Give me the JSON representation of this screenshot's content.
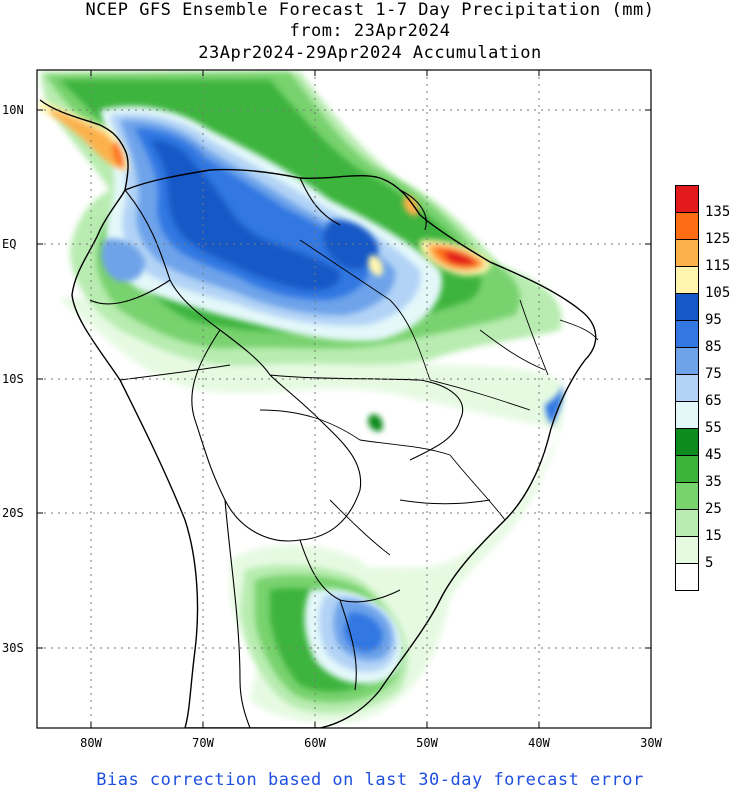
{
  "title": {
    "line1": "NCEP GFS Ensemble Forecast 1-7 Day Precipitation (mm)",
    "line2": "from: 23Apr2024",
    "line3": "23Apr2024-29Apr2024 Accumulation"
  },
  "axes": {
    "y_ticks": [
      "10N",
      "EQ",
      "10S",
      "20S",
      "30S"
    ],
    "x_ticks": [
      "80W",
      "70W",
      "60W",
      "50W",
      "40W",
      "30W"
    ]
  },
  "legend": {
    "labels": [
      "135",
      "125",
      "115",
      "105",
      "95",
      "85",
      "75",
      "65",
      "55",
      "45",
      "35",
      "25",
      "15",
      "5"
    ],
    "colors": [
      "#e31a1c",
      "#fd6d14",
      "#fcb14b",
      "#fff5ad",
      "#1459c6",
      "#3277e2",
      "#6ea3ea",
      "#b2d3f6",
      "#e4f8fa",
      "#0d8b1c",
      "#3cb43c",
      "#78d26e",
      "#b8ecb0",
      "#e6fae2",
      "#ffffff"
    ]
  },
  "footer": "Bias correction based on last 30-day forecast error"
}
